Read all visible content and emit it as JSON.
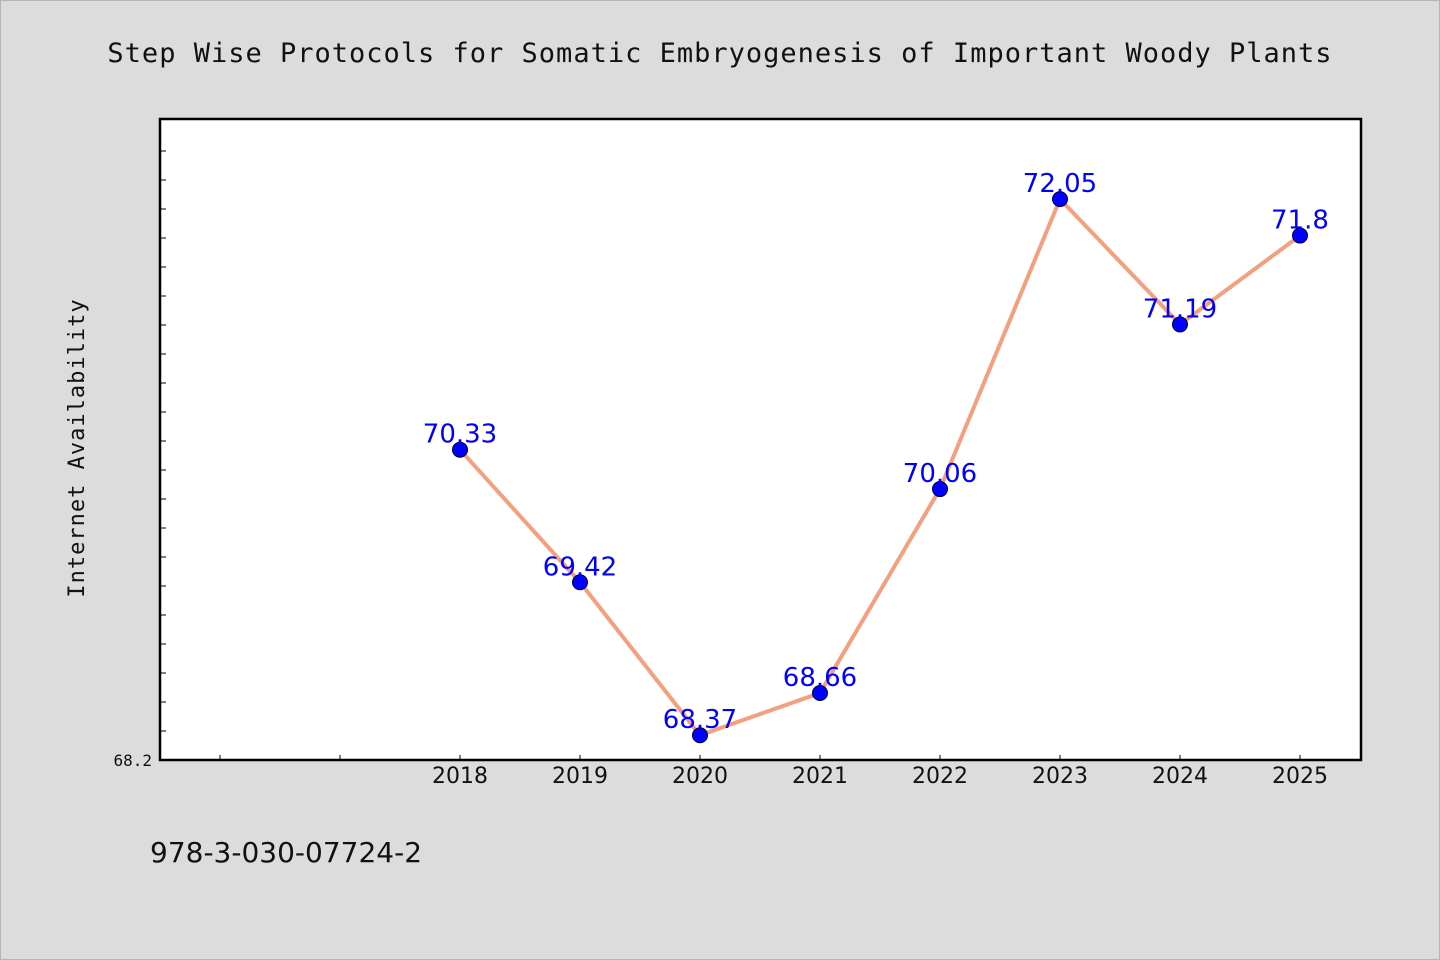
{
  "chart_data": {
    "type": "line",
    "title": "Step Wise Protocols for Somatic Embryogenesis of Important Woody Plants",
    "ylabel": "Internet Availability",
    "xlabel": "",
    "categories": [
      "2018",
      "2019",
      "2020",
      "2021",
      "2022",
      "2023",
      "2024",
      "2025"
    ],
    "values": [
      70.33,
      69.42,
      68.37,
      68.66,
      70.06,
      72.05,
      71.19,
      71.8
    ],
    "data_labels": [
      "70.33",
      "69.42",
      "68.37",
      "68.66",
      "70.06",
      "72.05",
      "71.19",
      "71.8"
    ],
    "y_tick_label": "68.2",
    "ylim": [
      68.2,
      72.6
    ],
    "grid": false,
    "line_color": "#f4a07f",
    "marker_color": "#0000ff",
    "label_color": "#0000ff"
  },
  "footer": {
    "text": "978-3-030-07724-2"
  }
}
